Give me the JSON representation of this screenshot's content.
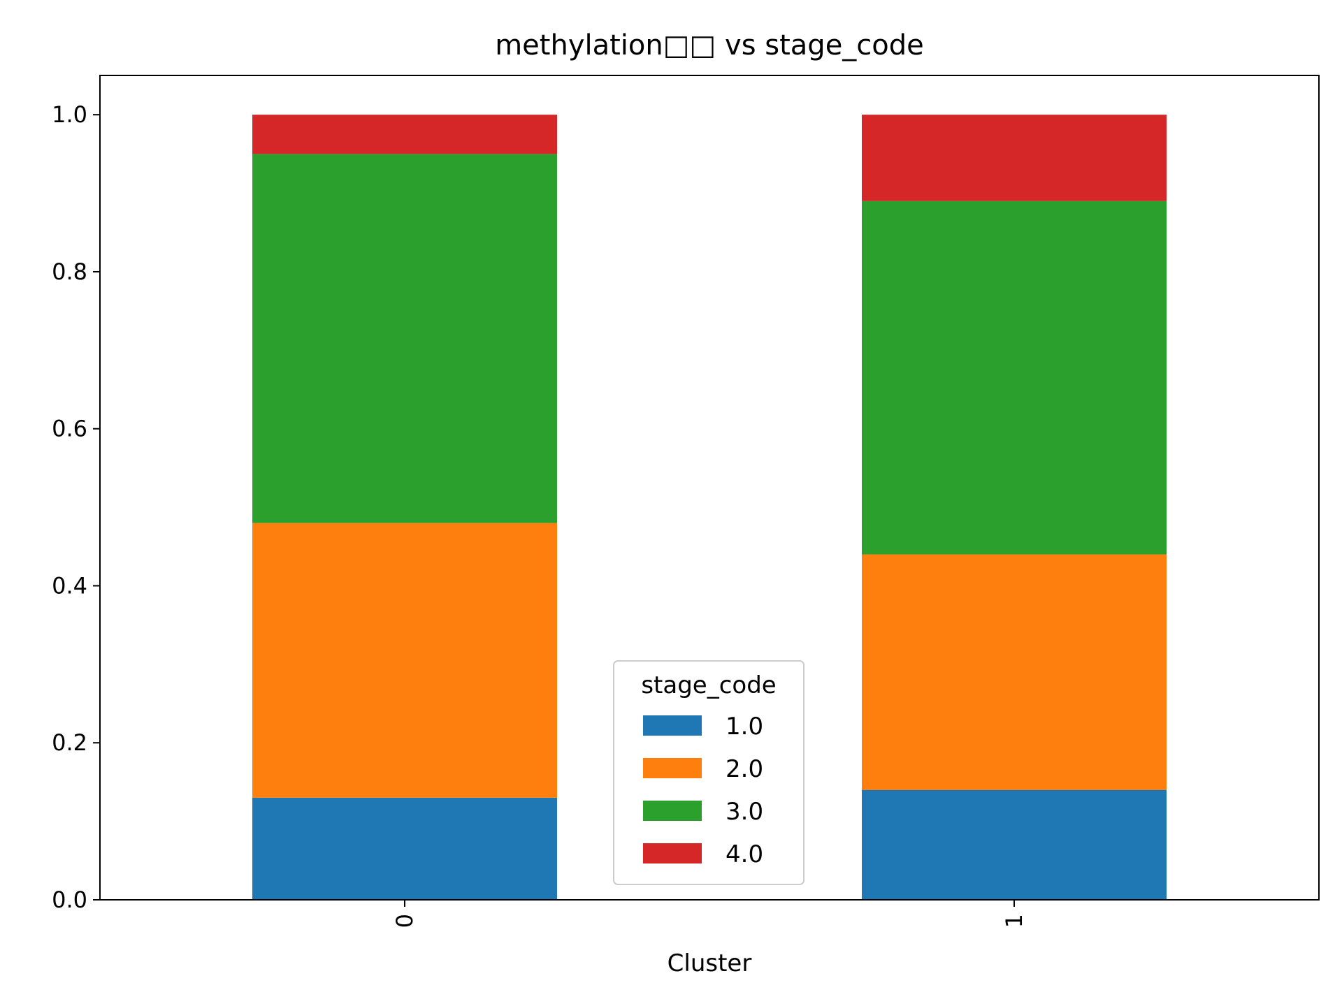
{
  "chart_data": {
    "type": "bar",
    "stacked": true,
    "title": "methylation□□ vs stage_code",
    "xlabel": "Cluster",
    "ylabel": "",
    "categories": [
      "0",
      "1"
    ],
    "ylim": [
      0,
      1.05
    ],
    "yticks": [
      "0.0",
      "0.2",
      "0.4",
      "0.6",
      "0.8",
      "1.0"
    ],
    "series": [
      {
        "name": "1.0",
        "color": "#1f77b4",
        "values": [
          0.13,
          0.14
        ]
      },
      {
        "name": "2.0",
        "color": "#ff7f0e",
        "values": [
          0.35,
          0.3
        ]
      },
      {
        "name": "3.0",
        "color": "#2ca02c",
        "values": [
          0.47,
          0.45
        ]
      },
      {
        "name": "4.0",
        "color": "#d62728",
        "values": [
          0.05,
          0.11
        ]
      }
    ],
    "legend": {
      "title": "stage_code",
      "placement": "lower-center"
    },
    "grid": false
  }
}
